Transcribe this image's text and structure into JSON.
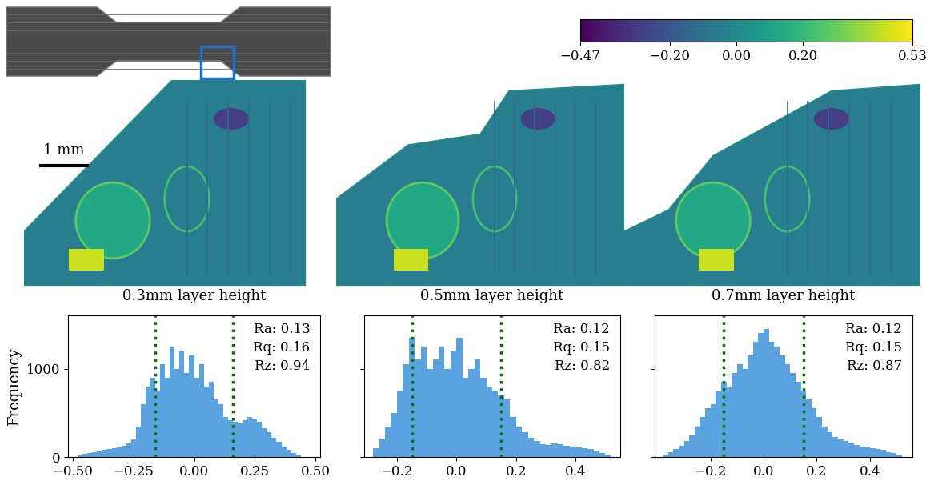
{
  "colorbar": {
    "range": [
      -0.47,
      0.53
    ],
    "ticks": [
      {
        "value": -0.47,
        "label": "−0.47"
      },
      {
        "value": -0.2,
        "label": "−0.20"
      },
      {
        "value": 0.0,
        "label": "0.00"
      },
      {
        "value": 0.2,
        "label": "0.20"
      },
      {
        "value": 0.53,
        "label": "0.53"
      }
    ]
  },
  "scale_bar": "1 mm",
  "chart_data": [
    {
      "type": "histogram",
      "title": "0.3mm layer height",
      "y_label": "Frequency",
      "color": "#5ba3e0",
      "bins": [
        -0.48,
        -0.46,
        -0.44,
        -0.42,
        -0.4,
        -0.38,
        -0.36,
        -0.34,
        -0.32,
        -0.3,
        -0.28,
        -0.26,
        -0.24,
        -0.22,
        -0.2,
        -0.18,
        -0.16,
        -0.14,
        -0.12,
        -0.1,
        -0.08,
        -0.06,
        -0.04,
        -0.02,
        0.0,
        0.02,
        0.04,
        0.06,
        0.08,
        0.1,
        0.12,
        0.14,
        0.16,
        0.18,
        0.2,
        0.22,
        0.24,
        0.26,
        0.28,
        0.3,
        0.32,
        0.34,
        0.36,
        0.38,
        0.4,
        0.42,
        0.44
      ],
      "counts": [
        20,
        40,
        50,
        60,
        70,
        80,
        90,
        100,
        110,
        130,
        160,
        200,
        350,
        600,
        800,
        900,
        750,
        1050,
        900,
        1250,
        1000,
        1200,
        950,
        1150,
        900,
        1050,
        800,
        850,
        650,
        600,
        450,
        420,
        400,
        380,
        420,
        450,
        430,
        400,
        330,
        280,
        220,
        170,
        120,
        80,
        50,
        20
      ],
      "xlim": [
        -0.52,
        0.52
      ],
      "ylim": [
        0,
        1600
      ],
      "xticks": [
        {
          "value": -0.5,
          "label": "−0.50"
        },
        {
          "value": -0.25,
          "label": "−0.25"
        },
        {
          "value": 0.0,
          "label": "0.00"
        },
        {
          "value": 0.25,
          "label": "0.25"
        },
        {
          "value": 0.5,
          "label": "0.50"
        }
      ],
      "yticks": [
        0,
        1000
      ],
      "vlines": [
        -0.16,
        0.16
      ],
      "annotations": [
        "Ra: 0.13",
        "Rq: 0.16",
        "Rz: 0.94"
      ]
    },
    {
      "type": "histogram",
      "title": "0.5mm layer height",
      "color": "#5ba3e0",
      "bins": [
        -0.28,
        -0.26,
        -0.24,
        -0.22,
        -0.2,
        -0.18,
        -0.16,
        -0.14,
        -0.12,
        -0.1,
        -0.08,
        -0.06,
        -0.04,
        -0.02,
        0.0,
        0.02,
        0.04,
        0.06,
        0.08,
        0.1,
        0.12,
        0.14,
        0.16,
        0.18,
        0.2,
        0.22,
        0.24,
        0.26,
        0.28,
        0.3,
        0.32,
        0.34,
        0.36,
        0.38,
        0.4,
        0.42,
        0.44,
        0.46,
        0.48,
        0.5,
        0.52
      ],
      "counts": [
        100,
        200,
        350,
        500,
        750,
        1050,
        1350,
        1100,
        1250,
        1000,
        1100,
        1250,
        1000,
        1200,
        1350,
        900,
        1000,
        1100,
        900,
        800,
        750,
        700,
        650,
        450,
        350,
        280,
        220,
        180,
        150,
        140,
        160,
        150,
        130,
        120,
        110,
        100,
        90,
        70,
        50,
        30
      ],
      "xlim": [
        -0.31,
        0.55
      ],
      "ylim": [
        0,
        1600
      ],
      "xticks": [
        {
          "value": -0.2,
          "label": "−0.2"
        },
        {
          "value": 0.0,
          "label": "0.0"
        },
        {
          "value": 0.2,
          "label": "0.2"
        },
        {
          "value": 0.4,
          "label": "0.4"
        }
      ],
      "yticks": [
        0,
        1000
      ],
      "tick_labels": "x",
      "vlines": [
        -0.15,
        0.15
      ],
      "annotations": [
        "Ra: 0.12",
        "Rq: 0.15",
        "Rz: 0.82"
      ]
    },
    {
      "type": "histogram",
      "title": "0.7mm layer height",
      "color": "#5ba3e0",
      "bins": [
        -0.38,
        -0.36,
        -0.34,
        -0.32,
        -0.3,
        -0.28,
        -0.26,
        -0.24,
        -0.22,
        -0.2,
        -0.18,
        -0.16,
        -0.14,
        -0.12,
        -0.1,
        -0.08,
        -0.06,
        -0.04,
        -0.02,
        0.0,
        0.02,
        0.04,
        0.06,
        0.08,
        0.1,
        0.12,
        0.14,
        0.16,
        0.18,
        0.2,
        0.22,
        0.24,
        0.26,
        0.28,
        0.3,
        0.32,
        0.34,
        0.36,
        0.38,
        0.4,
        0.42,
        0.44,
        0.46,
        0.48,
        0.5,
        0.52
      ],
      "counts": [
        30,
        60,
        90,
        130,
        180,
        250,
        350,
        450,
        550,
        600,
        750,
        850,
        800,
        950,
        1050,
        1000,
        1150,
        1300,
        1400,
        1450,
        1300,
        1250,
        1150,
        1050,
        950,
        850,
        750,
        650,
        550,
        450,
        350,
        280,
        230,
        200,
        180,
        160,
        140,
        120,
        110,
        100,
        90,
        80,
        60,
        50,
        30
      ],
      "xlim": [
        -0.41,
        0.56
      ],
      "ylim": [
        0,
        1600
      ],
      "xticks": [
        {
          "value": -0.2,
          "label": "−0.2"
        },
        {
          "value": 0.0,
          "label": "0.0"
        },
        {
          "value": 0.2,
          "label": "0.2"
        },
        {
          "value": 0.4,
          "label": "0.4"
        }
      ],
      "yticks": [
        0,
        1000
      ],
      "tick_labels": "x",
      "vlines": [
        -0.15,
        0.15
      ],
      "annotations": [
        "Ra: 0.12",
        "Rq: 0.15",
        "Rz: 0.87"
      ]
    }
  ]
}
